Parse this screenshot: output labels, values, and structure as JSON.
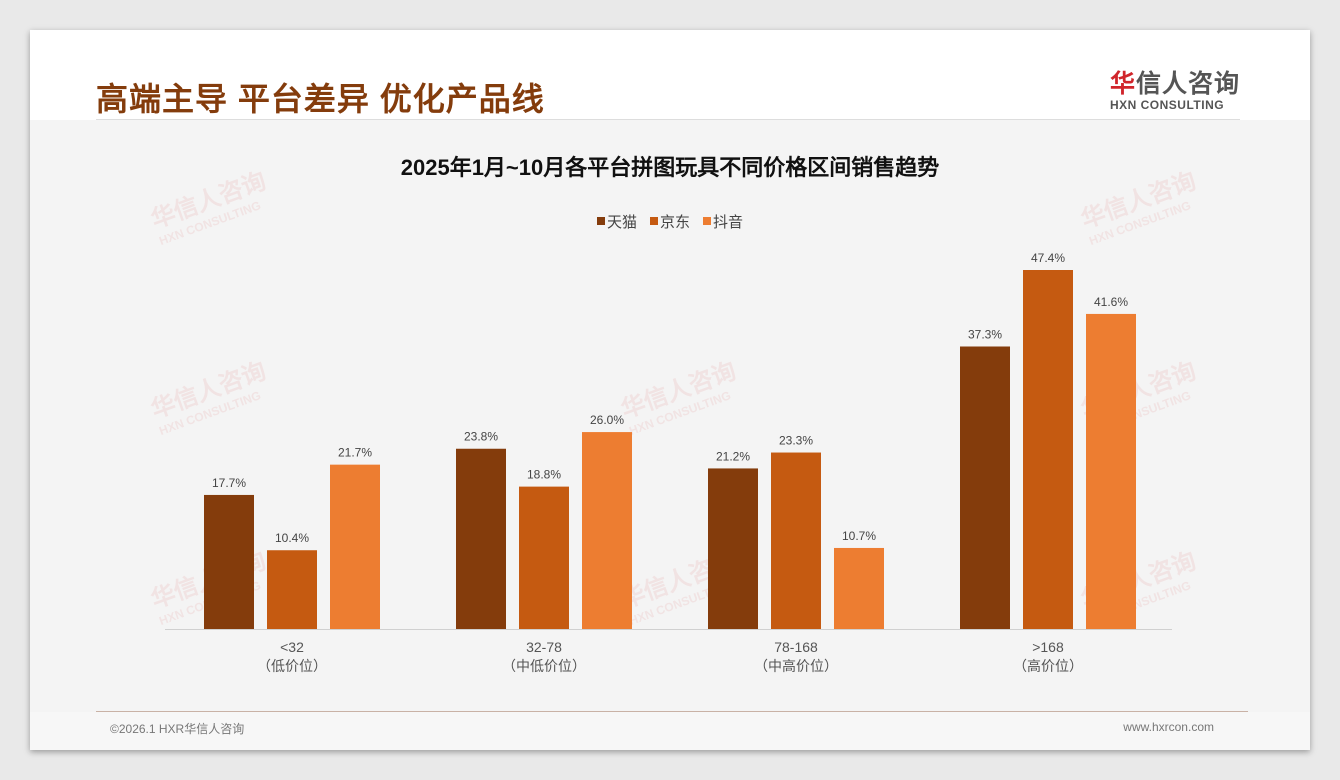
{
  "header": {
    "title": "高端主导 平台差异 优化产品线",
    "logo_cn_first": "华",
    "logo_cn_rest": "信人咨询",
    "logo_en": "HXN CONSULTING"
  },
  "footer": {
    "copyright": "©2026.1 HXR华信人咨询",
    "website": "www.hxrcon.com"
  },
  "watermark": {
    "cn": "华信人咨询",
    "en": "HXN CONSULTING"
  },
  "colors": {
    "tmall": "#843C0C",
    "jd": "#C55A11",
    "douyin": "#ED7D31"
  },
  "chart_data": {
    "type": "bar",
    "title": "2025年1月~10月各平台拼图玩具不同价格区间销售趋势",
    "categories": [
      "<32",
      "32-78",
      "78-168",
      ">168"
    ],
    "category_sublabels": [
      "（低价位）",
      "（中低价位）",
      "（中高价位）",
      "（高价位）"
    ],
    "series": [
      {
        "name": "天猫",
        "values": [
          17.7,
          23.8,
          21.2,
          37.3
        ],
        "color": "#843C0C"
      },
      {
        "name": "京东",
        "values": [
          10.4,
          18.8,
          23.3,
          47.4
        ],
        "color": "#C55A11"
      },
      {
        "name": "抖音",
        "values": [
          21.7,
          26.0,
          10.7,
          41.6
        ],
        "color": "#ED7D31"
      }
    ],
    "value_suffix": "%",
    "ylim": [
      0,
      50
    ],
    "legend": "top-center",
    "grid": false
  }
}
